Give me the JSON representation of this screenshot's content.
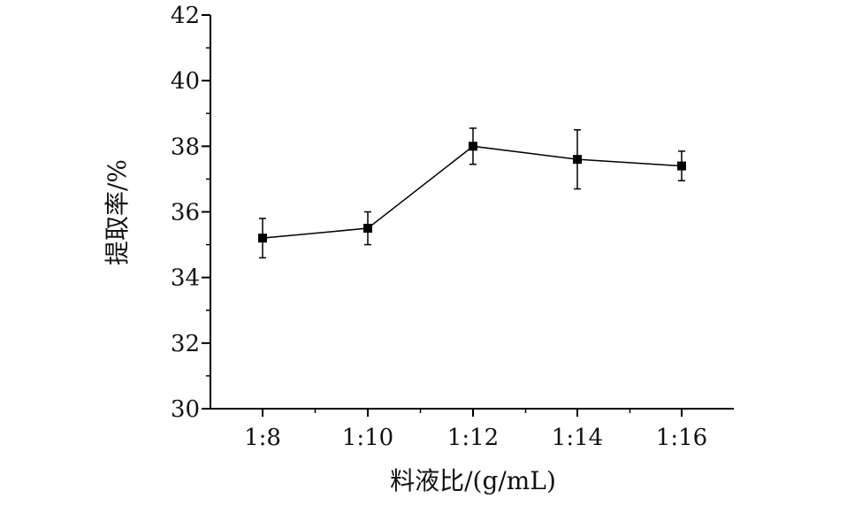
{
  "chart_data": {
    "type": "line",
    "title": "",
    "xlabel": "料液比/(g/mL)",
    "ylabel": "提取率/%",
    "categories": [
      "1:8",
      "1:10",
      "1:12",
      "1:14",
      "1:16"
    ],
    "series": [
      {
        "values": [
          35.2,
          35.5,
          38.0,
          37.6,
          37.4
        ],
        "errors": [
          0.6,
          0.5,
          0.55,
          0.9,
          0.45
        ]
      }
    ],
    "ylim": [
      30,
      42
    ],
    "yticks": [
      30,
      32,
      34,
      36,
      38,
      40,
      42
    ],
    "grid": false,
    "line_color": "#000000",
    "marker": "square"
  }
}
